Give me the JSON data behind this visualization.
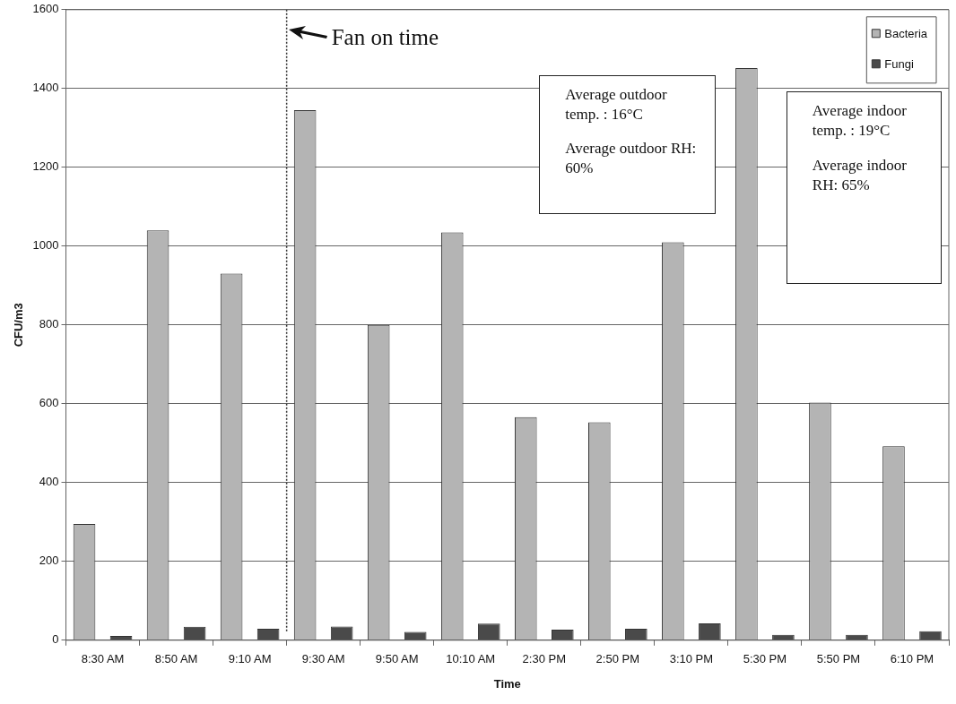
{
  "chart_data": {
    "type": "bar",
    "xlabel": "Time",
    "ylabel": "CFU/m3",
    "categories": [
      "8:30 AM",
      "8:50 AM",
      "9:10 AM",
      "9:30 AM",
      "9:50 AM",
      "10:10 AM",
      "2:30 PM",
      "2:50 PM",
      "3:10 PM",
      "5:30 PM",
      "5:50 PM",
      "6:10 PM"
    ],
    "series": [
      {
        "name": "Bacteria",
        "color": "#b4b4b4",
        "values": [
          295,
          1040,
          930,
          1345,
          800,
          1035,
          566,
          553,
          1010,
          1452,
          603,
          492
        ]
      },
      {
        "name": "Fungi",
        "color": "#4a4a4a",
        "values": [
          11,
          34,
          29,
          35,
          21,
          42,
          27,
          29,
          43,
          14,
          14,
          23
        ]
      }
    ],
    "ylim": [
      0,
      1600
    ],
    "yticks": [
      0,
      200,
      400,
      600,
      800,
      1000,
      1200,
      1400,
      1600
    ],
    "grid": "y",
    "legend": "top right",
    "ref_lines": [
      {
        "axis": "x",
        "value": "9:30 AM",
        "label": "Fan on time",
        "line_style": "dotted",
        "color": "#333333"
      }
    ],
    "annotations": [
      "Average outdoor temp. : 16°C\nAverage outdoor RH: 60%",
      "Average indoor temp. : 19°C\nAverage indoor RH: 65%"
    ]
  }
}
